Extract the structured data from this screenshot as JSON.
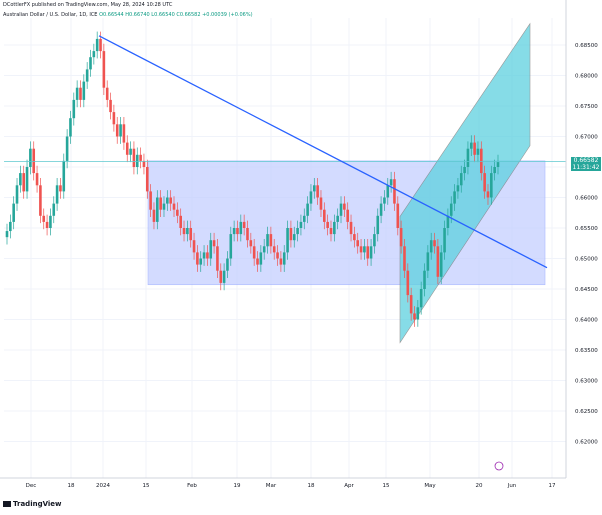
{
  "header": {
    "published": "DCottlerFX published on TradingView.com, May 28, 2024 10:28 UTC",
    "symbol": "Australian Dollar / U.S. Dollar, 1D, ICE",
    "ohlc": "O0.66544 H0.66740 L0.66540 C0.66582 +0.00039 (+0.06%)"
  },
  "chart_data": {
    "type": "candlestick",
    "x_tick_labels": [
      "Dec",
      "18",
      "2024",
      "15",
      "Feb",
      "19",
      "Mar",
      "18",
      "Apr",
      "15",
      "May",
      "20",
      "Jun",
      "17"
    ],
    "y_tick_labels": [
      "0.68500",
      "0.68000",
      "0.67500",
      "0.67000",
      "0.66500",
      "0.66000",
      "0.65500",
      "0.65000",
      "0.64500",
      "0.64000",
      "0.63500",
      "0.63000",
      "0.62500",
      "0.62000"
    ],
    "ylim": [
      0.6165,
      0.6895
    ],
    "last_price": "0.66582",
    "countdown": "11:31:42",
    "up_color": "#26a69a",
    "down_color": "#ef5350",
    "candles_close": [
      0.6545,
      0.656,
      0.659,
      0.662,
      0.664,
      0.661,
      0.665,
      0.668,
      0.664,
      0.662,
      0.657,
      0.656,
      0.655,
      0.657,
      0.659,
      0.662,
      0.661,
      0.666,
      0.67,
      0.673,
      0.676,
      0.678,
      0.676,
      0.679,
      0.681,
      0.683,
      0.684,
      0.686,
      0.684,
      0.678,
      0.676,
      0.674,
      0.672,
      0.67,
      0.672,
      0.669,
      0.667,
      0.668,
      0.665,
      0.667,
      0.666,
      0.665,
      0.661,
      0.658,
      0.656,
      0.66,
      0.658,
      0.659,
      0.66,
      0.659,
      0.658,
      0.657,
      0.655,
      0.654,
      0.655,
      0.653,
      0.651,
      0.649,
      0.65,
      0.651,
      0.65,
      0.653,
      0.652,
      0.648,
      0.646,
      0.648,
      0.65,
      0.654,
      0.655,
      0.654,
      0.656,
      0.655,
      0.653,
      0.652,
      0.65,
      0.649,
      0.651,
      0.652,
      0.654,
      0.652,
      0.651,
      0.65,
      0.649,
      0.651,
      0.655,
      0.653,
      0.654,
      0.655,
      0.656,
      0.657,
      0.659,
      0.661,
      0.662,
      0.66,
      0.658,
      0.656,
      0.655,
      0.654,
      0.656,
      0.657,
      0.659,
      0.658,
      0.656,
      0.654,
      0.653,
      0.652,
      0.651,
      0.652,
      0.65,
      0.652,
      0.654,
      0.657,
      0.659,
      0.66,
      0.662,
      0.663,
      0.659,
      0.655,
      0.652,
      0.648,
      0.644,
      0.641,
      0.64,
      0.642,
      0.645,
      0.648,
      0.651,
      0.653,
      0.652,
      0.647,
      0.651,
      0.655,
      0.657,
      0.659,
      0.661,
      0.662,
      0.664,
      0.665,
      0.668,
      0.669,
      0.667,
      0.668,
      0.664,
      0.661,
      0.66,
      0.664,
      0.665,
      0.6658
    ],
    "trendline": [
      [
        0.6865,
        0.6485
      ]
    ],
    "range_box": [
      0.666,
      0.6457
    ],
    "channel": {
      "bottom_start": 0.6362,
      "bottom_end": 0.6685,
      "top_start": 0.6569,
      "top_end": 0.6885
    },
    "horizontal_line": 0.6659
  },
  "footer": {
    "logo": "TradingView"
  }
}
